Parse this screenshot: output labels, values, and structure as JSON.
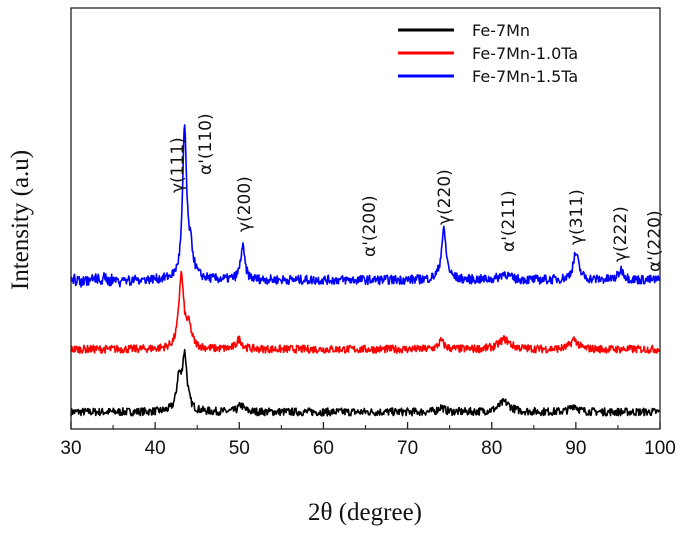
{
  "chart_data": {
    "type": "line",
    "xlabel": "2θ (degree)",
    "ylabel": "Intensity (a.u)",
    "xlim": [
      30,
      100
    ],
    "xticks": [
      30,
      40,
      50,
      60,
      70,
      80,
      90,
      100
    ],
    "yticks_shown": false,
    "legend_position": "top-right",
    "series": [
      {
        "name": "Fe-7Mn",
        "color": "#000000",
        "baseline": 0.0,
        "noise": 0.012,
        "peaks": [
          {
            "x": 42.8,
            "h": 0.09,
            "w": 0.3
          },
          {
            "x": 43.5,
            "h": 0.17,
            "w": 0.35
          },
          {
            "x": 50.2,
            "h": 0.02,
            "w": 0.4
          },
          {
            "x": 74.0,
            "h": 0.015,
            "w": 0.4
          },
          {
            "x": 81.5,
            "h": 0.03,
            "w": 0.8
          },
          {
            "x": 89.8,
            "h": 0.02,
            "w": 0.5
          }
        ]
      },
      {
        "name": "Fe-7Mn-1.0Ta",
        "color": "#ff0000",
        "baseline": 0.19,
        "noise": 0.012,
        "peaks": [
          {
            "x": 43.1,
            "h": 0.22,
            "w": 0.35
          },
          {
            "x": 44.0,
            "h": 0.06,
            "w": 0.4
          },
          {
            "x": 50.0,
            "h": 0.03,
            "w": 0.4
          },
          {
            "x": 74.0,
            "h": 0.025,
            "w": 0.4
          },
          {
            "x": 81.5,
            "h": 0.03,
            "w": 0.8
          },
          {
            "x": 89.8,
            "h": 0.03,
            "w": 0.5
          }
        ]
      },
      {
        "name": "Fe-7Mn-1.5Ta",
        "color": "#0000ff",
        "baseline": 0.4,
        "noise": 0.014,
        "peaks": [
          {
            "x": 43.5,
            "h": 0.45,
            "w": 0.28
          },
          {
            "x": 44.2,
            "h": 0.08,
            "w": 0.4
          },
          {
            "x": 50.4,
            "h": 0.1,
            "w": 0.3
          },
          {
            "x": 74.3,
            "h": 0.15,
            "w": 0.35
          },
          {
            "x": 81.5,
            "h": 0.02,
            "w": 0.6
          },
          {
            "x": 90.0,
            "h": 0.08,
            "w": 0.4
          },
          {
            "x": 95.4,
            "h": 0.03,
            "w": 0.4
          }
        ]
      }
    ],
    "annotations": [
      {
        "text": "γ(111)",
        "x": 43.5
      },
      {
        "text": "α'(110)",
        "x": 45.5
      },
      {
        "text": "γ(200)",
        "x": 50.4
      },
      {
        "text": "α'(200)",
        "x": 65.2
      },
      {
        "text": "γ(220)",
        "x": 74.3
      },
      {
        "text": "α'(211)",
        "x": 82.0
      },
      {
        "text": "γ(311)",
        "x": 90.2
      },
      {
        "text": "γ(222)",
        "x": 95.4
      },
      {
        "text": "α'(220)",
        "x": 99.0
      }
    ]
  }
}
